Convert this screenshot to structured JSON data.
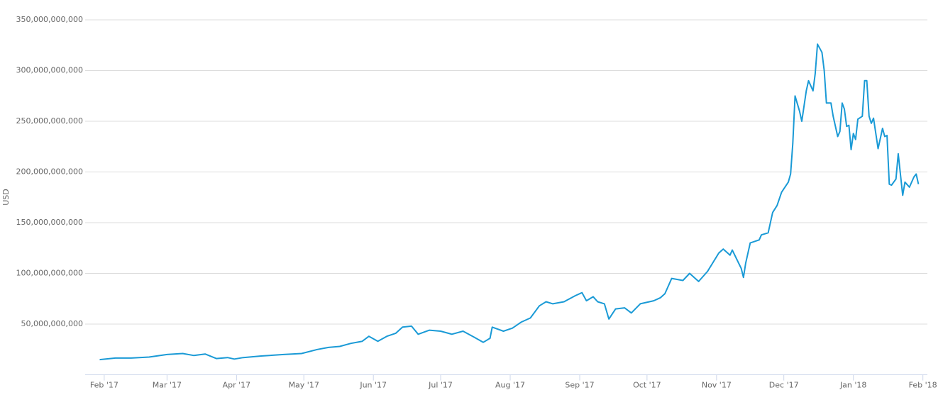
{
  "chart_data": {
    "type": "line",
    "ylabel": "USD",
    "color": "#1a9ad6",
    "grid": true,
    "x": [
      -2,
      5,
      12,
      20,
      28,
      35,
      40,
      45,
      50,
      55,
      58,
      62,
      70,
      80,
      88,
      95,
      100,
      105,
      110,
      115,
      118,
      122,
      126,
      130,
      133,
      137,
      140,
      145,
      150,
      155,
      160,
      165,
      169,
      172,
      173,
      178,
      182,
      186,
      190,
      194,
      197,
      200,
      205,
      210,
      213,
      215,
      218,
      220,
      223,
      225,
      228,
      232,
      235,
      239,
      245,
      248,
      250,
      253,
      258,
      261,
      265,
      269,
      274,
      276,
      279,
      280,
      284,
      285,
      286,
      288,
      292,
      293,
      296,
      298,
      300,
      302,
      305,
      306,
      307,
      308,
      310,
      311,
      313,
      314,
      316,
      317,
      318,
      320,
      321,
      322,
      324,
      325,
      327,
      328,
      329,
      330,
      331,
      332,
      333,
      334,
      335,
      336,
      338,
      339,
      340,
      341,
      342,
      343,
      345,
      347,
      348,
      349,
      350,
      351,
      353,
      354,
      356,
      357,
      359,
      361,
      362,
      363
    ],
    "values": [
      15000000000.0,
      16500000000.0,
      16500000000.0,
      17500000000.0,
      20000000000.0,
      21000000000.0,
      19000000000.0,
      20500000000.0,
      16000000000.0,
      17000000000.0,
      15500000000.0,
      17000000000.0,
      18500000000.0,
      20000000000.0,
      21000000000.0,
      25000000000.0,
      27000000000.0,
      28000000000.0,
      31000000000.0,
      33000000000.0,
      38000000000.0,
      33000000000.0,
      38000000000.0,
      41000000000.0,
      47000000000.0,
      48000000000.0,
      40000000000.0,
      44000000000.0,
      43000000000.0,
      40000000000.0,
      43000000000.0,
      37000000000.0,
      32000000000.0,
      36000000000.0,
      47000000000.0,
      43000000000.0,
      46000000000.0,
      52000000000.0,
      56000000000.0,
      68000000000.0,
      72000000000.0,
      70000000000.0,
      72000000000.0,
      78000000000.0,
      81000000000.0,
      73000000000.0,
      77000000000.0,
      72000000000.0,
      70000000000.0,
      55000000000.0,
      65000000000.0,
      66000000000.0,
      61000000000.0,
      70000000000.0,
      73000000000.0,
      76000000000.0,
      80000000000.0,
      95000000000.0,
      93000000000.0,
      100000000000.0,
      92000000000.0,
      102000000000.0,
      120000000000.0,
      124000000000.0,
      118000000000.0,
      123000000000.0,
      105000000000.0,
      96000000000.0,
      110000000000.0,
      130000000000.0,
      133000000000.0,
      138000000000.0,
      140000000000.0,
      160000000000.0,
      167000000000.0,
      180000000000.0,
      190000000000.0,
      198000000000.0,
      228000000000.0,
      275000000000.0,
      260000000000.0,
      250000000000.0,
      280000000000.0,
      290000000000.0,
      280000000000.0,
      297000000000.0,
      326000000000.0,
      318000000000.0,
      300000000000.0,
      268000000000.0,
      268000000000.0,
      255000000000.0,
      235000000000.0,
      240000000000.0,
      268000000000.0,
      262000000000.0,
      245000000000.0,
      246000000000.0,
      222000000000.0,
      238000000000.0,
      232000000000.0,
      252000000000.0,
      255000000000.0,
      290000000000.0,
      290000000000.0,
      255000000000.0,
      248000000000.0,
      253000000000.0,
      223000000000.0,
      243000000000.0,
      235000000000.0,
      236000000000.0,
      188000000000.0,
      187000000000.0,
      193000000000.0,
      218000000000.0,
      177000000000.0,
      190000000000.0,
      185000000000.0,
      195000000000.0,
      198000000000.0,
      188000000000.0
    ],
    "xlim": [
      -8.5,
      367
    ],
    "xticks": [
      {
        "value": 0,
        "label": "Feb '17"
      },
      {
        "value": 28,
        "label": "Mar '17"
      },
      {
        "value": 59,
        "label": "Apr '17"
      },
      {
        "value": 89,
        "label": "May '17"
      },
      {
        "value": 120,
        "label": "Jun '17"
      },
      {
        "value": 150,
        "label": "Jul '17"
      },
      {
        "value": 181,
        "label": "Aug '17"
      },
      {
        "value": 212,
        "label": "Sep '17"
      },
      {
        "value": 242,
        "label": "Oct '17"
      },
      {
        "value": 273,
        "label": "Nov '17"
      },
      {
        "value": 303,
        "label": "Dec '17"
      },
      {
        "value": 334,
        "label": "Jan '18"
      },
      {
        "value": 365,
        "label": "Feb '18"
      }
    ],
    "ylim": [
      0,
      350000000000
    ],
    "yticks": [
      {
        "value": 50000000000,
        "label": "50,000,000,000"
      },
      {
        "value": 100000000000,
        "label": "100,000,000,000"
      },
      {
        "value": 150000000000,
        "label": "150,000,000,000"
      },
      {
        "value": 200000000000,
        "label": "200,000,000,000"
      },
      {
        "value": 250000000000,
        "label": "250,000,000,000"
      },
      {
        "value": 300000000000,
        "label": "300,000,000,000"
      },
      {
        "value": 350000000000,
        "label": "350,000,000,000"
      }
    ]
  }
}
